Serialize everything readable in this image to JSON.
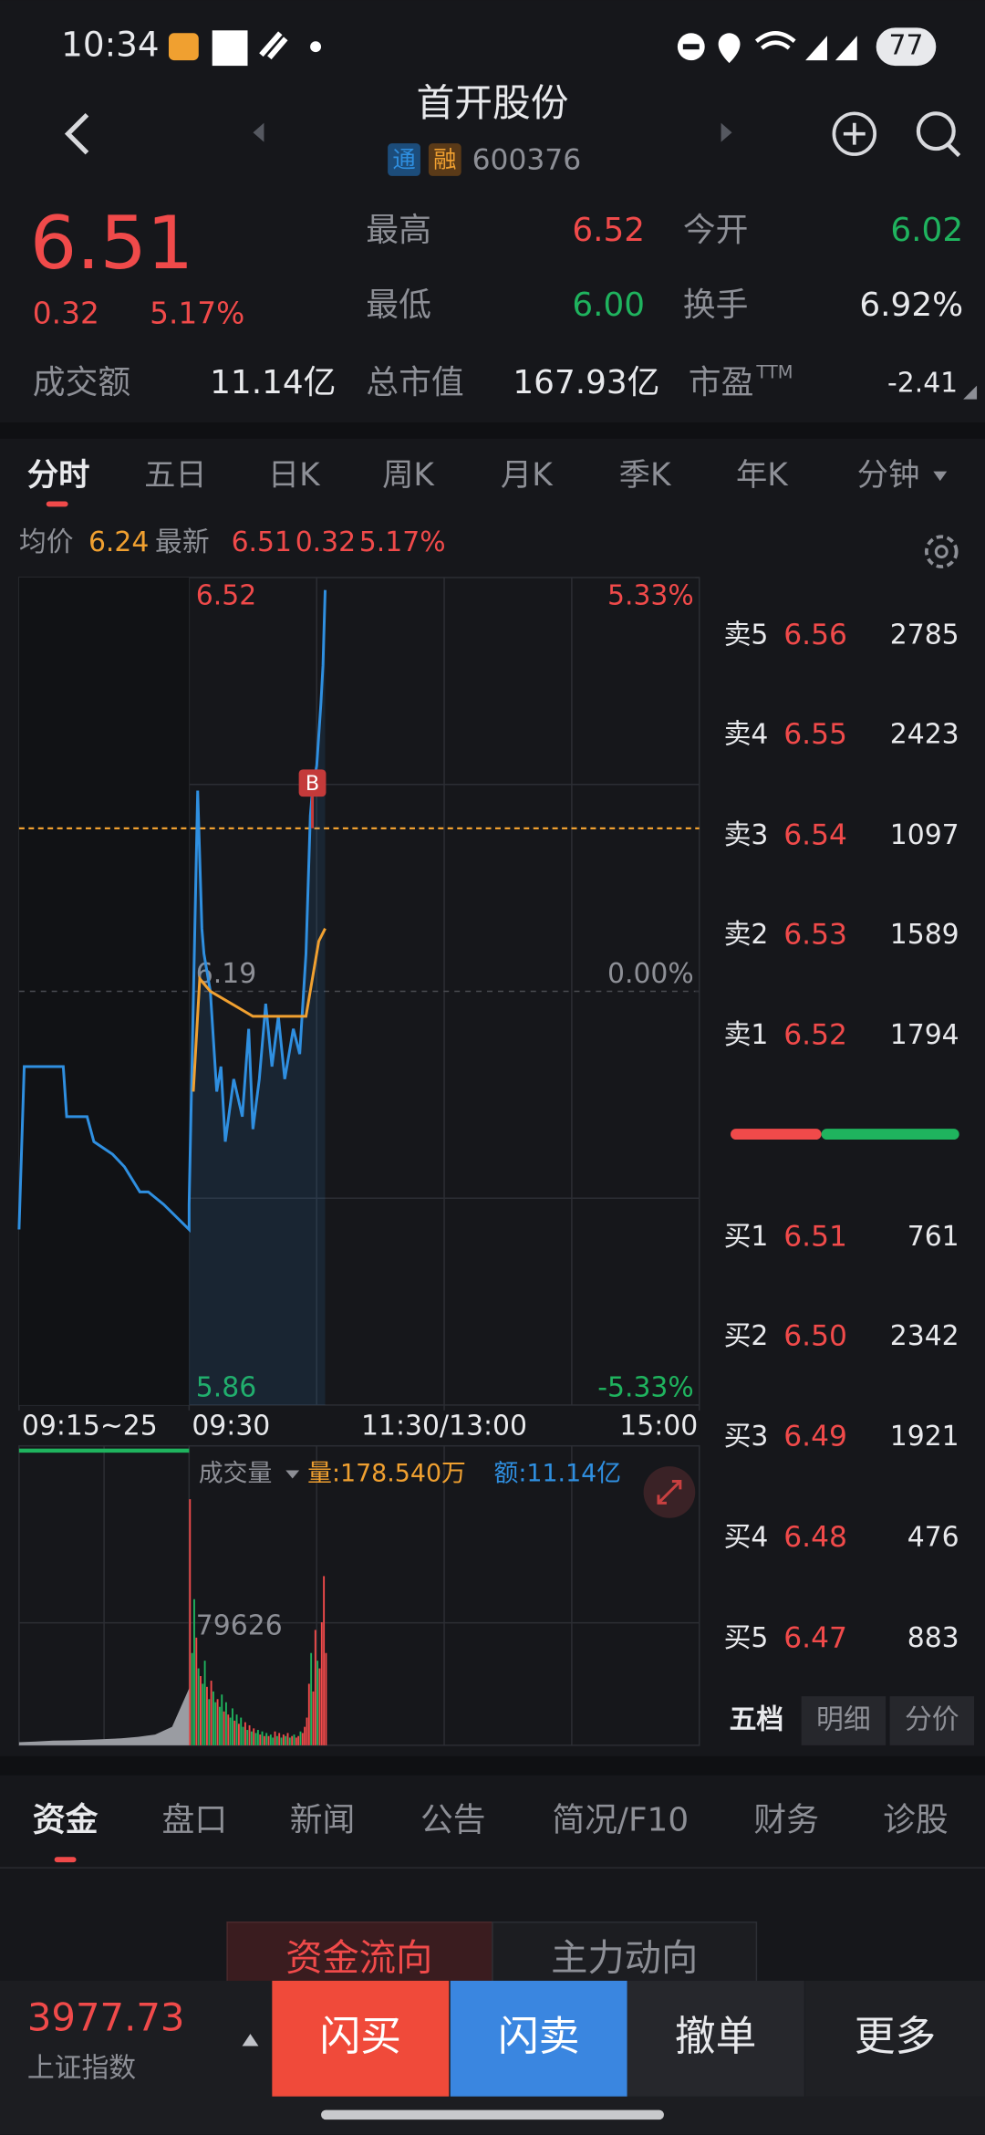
{
  "status_bar": {
    "time": "10:34",
    "battery": "77"
  },
  "header": {
    "title": "首开股份",
    "badges": [
      "通",
      "融"
    ],
    "code": "600376"
  },
  "quote": {
    "price": "6.51",
    "change": "0.32",
    "change_pct": "5.17%",
    "high": {
      "label": "最高",
      "value": "6.52"
    },
    "open": {
      "label": "今开",
      "value": "6.02"
    },
    "low": {
      "label": "最低",
      "value": "6.00"
    },
    "turnover": {
      "label": "换手",
      "value": "6.92%"
    },
    "amount": {
      "label": "成交额",
      "value": "11.14亿"
    },
    "market_cap": {
      "label": "总市值",
      "value": "167.93亿"
    },
    "pe": {
      "label": "市盈",
      "sup": "TTM",
      "value": "-2.41"
    }
  },
  "period_tabs": [
    "分时",
    "五日",
    "日K",
    "周K",
    "月K",
    "季K",
    "年K",
    "分钟"
  ],
  "info_line": {
    "avg_label": "均价",
    "avg": "6.24",
    "latest_label": "最新",
    "latest": "6.51",
    "change": "0.32",
    "change_pct": "5.17%"
  },
  "chart_data": {
    "type": "line",
    "xlim": [
      -10,
      240
    ],
    "xticks": [
      {
        "value": -10,
        "label": "09:15~25"
      },
      {
        "value": 0,
        "label": "09:30"
      },
      {
        "value": 120,
        "label": "11:30/13:00"
      },
      {
        "value": 240,
        "label": "15:00"
      }
    ],
    "ylim": [
      5.86,
      6.52
    ],
    "yticks": [
      6.52,
      6.19,
      5.86
    ],
    "y2lim": [
      -5.33,
      5.33
    ],
    "y2ticks": [
      {
        "value": 5.33,
        "label": "5.33%"
      },
      {
        "value": 0,
        "label": "0.00%"
      },
      {
        "value": -5.33,
        "label": "-5.33%"
      }
    ],
    "grid": true,
    "series": [
      {
        "color": "#2f8fe0",
        "x": [
          -10,
          -9.7,
          -7.4,
          -7.2,
          -6,
          -5.6,
          -4.5,
          -3.8,
          -2.9,
          -2.4,
          -1.5,
          0,
          0,
          4,
          6,
          7,
          10,
          13,
          15,
          17,
          21,
          25,
          28,
          30,
          33,
          36,
          39,
          42,
          45,
          49,
          52,
          55,
          57,
          58,
          60,
          62,
          63,
          64
        ],
        "values": [
          6.0,
          6.13,
          6.13,
          6.09,
          6.09,
          6.07,
          6.06,
          6.05,
          6.03,
          6.03,
          6.02,
          6.0,
          6.02,
          6.35,
          6.24,
          6.22,
          6.19,
          6.11,
          6.13,
          6.07,
          6.12,
          6.09,
          6.16,
          6.08,
          6.12,
          6.18,
          6.13,
          6.17,
          6.12,
          6.16,
          6.14,
          6.22,
          6.33,
          6.35,
          6.37,
          6.42,
          6.45,
          6.51
        ]
      },
      {
        "color": "#f0a030",
        "x": [
          2,
          5,
          10,
          20,
          30,
          40,
          50,
          55,
          58,
          61,
          64
        ],
        "values": [
          6.11,
          6.2,
          6.19,
          6.18,
          6.17,
          6.17,
          6.17,
          6.17,
          6.2,
          6.23,
          6.24
        ]
      }
    ],
    "reference_line": {
      "value": 6.32,
      "color": "#f0a030"
    },
    "trade_marker": {
      "label": "B",
      "x": 58
    }
  },
  "volume_chart": {
    "type": "bar",
    "label": "成交量",
    "qty": "量:178.540万",
    "amount": "额:11.14亿",
    "ylim": [
      0,
      194680
    ],
    "yticks": [
      79626
    ],
    "preauction_x": [
      -10,
      -9,
      -8,
      -7,
      -6,
      -5,
      -4,
      -3,
      -2,
      -1,
      0
    ],
    "preauction_values": [
      2000,
      2500,
      3000,
      3200,
      3500,
      4000,
      4500,
      5500,
      7000,
      12000,
      37000
    ],
    "values": [
      160000,
      60000,
      95000,
      70000,
      50000,
      45000,
      40000,
      55000,
      38000,
      30000,
      42000,
      35000,
      28000,
      30000,
      25000,
      33000,
      22000,
      28000,
      20000,
      18000,
      24000,
      16000,
      20000,
      14000,
      18000,
      12000,
      15000,
      10000,
      13000,
      9000,
      11000,
      8000,
      10000,
      7000,
      9000,
      6000,
      8000,
      6000,
      7000,
      5000,
      9000,
      6000,
      8000,
      5000,
      7000,
      6000,
      8000,
      5000,
      6000,
      7000,
      5000,
      6000,
      9000,
      8000,
      12000,
      18000,
      40000,
      60000,
      35000,
      75000,
      55000,
      50000,
      80000,
      110000,
      60000
    ],
    "up": [
      true,
      false,
      false,
      true,
      false,
      true,
      false,
      false,
      true,
      false,
      true,
      false,
      false,
      true,
      false,
      false,
      true,
      false,
      true,
      false,
      false,
      true,
      false,
      true,
      false,
      false,
      true,
      false,
      true,
      false,
      true,
      false,
      false,
      true,
      false,
      true,
      false,
      true,
      false,
      false,
      true,
      false,
      true,
      false,
      true,
      false,
      true,
      false,
      true,
      false,
      true,
      true,
      false,
      true,
      true,
      true,
      true,
      false,
      true,
      true,
      false,
      true,
      true,
      true,
      true
    ],
    "up_color": "#f04a4a",
    "down_color": "#1fb35e",
    "preauction_color": "#9a9ca2"
  },
  "order_book": {
    "asks": [
      {
        "label": "卖5",
        "price": "6.56",
        "volume": 2785
      },
      {
        "label": "卖4",
        "price": "6.55",
        "volume": 2423
      },
      {
        "label": "卖3",
        "price": "6.54",
        "volume": 1097
      },
      {
        "label": "卖2",
        "price": "6.53",
        "volume": 1589
      },
      {
        "label": "卖1",
        "price": "6.52",
        "volume": 1794
      }
    ],
    "bids": [
      {
        "label": "买1",
        "price": "6.51",
        "volume": 761
      },
      {
        "label": "买2",
        "price": "6.50",
        "volume": 2342
      },
      {
        "label": "买3",
        "price": "6.49",
        "volume": 1921
      },
      {
        "label": "买4",
        "price": "6.48",
        "volume": 476
      },
      {
        "label": "买5",
        "price": "6.47",
        "volume": 883
      }
    ],
    "tabs": [
      "五档",
      "明细",
      "分价"
    ]
  },
  "bottom_tabs": [
    "资金",
    "盘口",
    "新闻",
    "公告",
    "简况/F10",
    "财务",
    "诊股"
  ],
  "fund_tabs": [
    "资金流向",
    "主力动向"
  ],
  "footer": {
    "index_value": "3977.73",
    "index_name": "上证指数",
    "buttons": [
      "闪买",
      "闪卖",
      "撤单",
      "更多"
    ]
  }
}
